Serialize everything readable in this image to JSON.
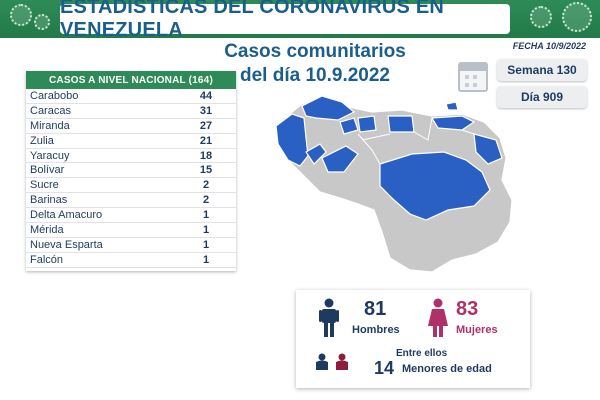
{
  "header": {
    "title": "ESTADÍSTICAS DEL CORONAVIRUS EN VENEZUELA"
  },
  "subtitle": {
    "line1": "Casos comunitarios",
    "line2": "del día 10.9.2022"
  },
  "date_label": "FECHA 10/9/2022",
  "info": {
    "week": "Semana 130",
    "day": "Día 909"
  },
  "table": {
    "header": "CASOS A NIVEL NACIONAL (164)",
    "rows": [
      {
        "state": "Carabobo",
        "cases": "44"
      },
      {
        "state": "Caracas",
        "cases": "31"
      },
      {
        "state": "Miranda",
        "cases": "27"
      },
      {
        "state": "Zulia",
        "cases": "21"
      },
      {
        "state": "Yaracuy",
        "cases": "18"
      },
      {
        "state": "Bolívar",
        "cases": "15"
      },
      {
        "state": "Sucre",
        "cases": "2"
      },
      {
        "state": "Barinas",
        "cases": "2"
      },
      {
        "state": "Delta Amacuro",
        "cases": "1"
      },
      {
        "state": "Mérida",
        "cases": "1"
      },
      {
        "state": "Nueva Esparta",
        "cases": "1"
      },
      {
        "state": "Falcón",
        "cases": "1"
      }
    ]
  },
  "stats": {
    "men_count": "81",
    "men_label": "Hombres",
    "women_count": "83",
    "women_label": "Mujeres",
    "minors_prefix": "Entre ellos",
    "minors_count": "14",
    "minors_label": "Menores de edad"
  },
  "colors": {
    "header_green": "#2e8b57",
    "title_blue": "#1b5e8c",
    "map_highlight": "#2a5fc4",
    "map_base": "#c8c8c8",
    "women_pink": "#b0306a",
    "men_navy": "#1f3a5f"
  },
  "icons": [
    "virus-icon",
    "calendar-icon",
    "man-icon",
    "woman-icon",
    "children-icon"
  ]
}
